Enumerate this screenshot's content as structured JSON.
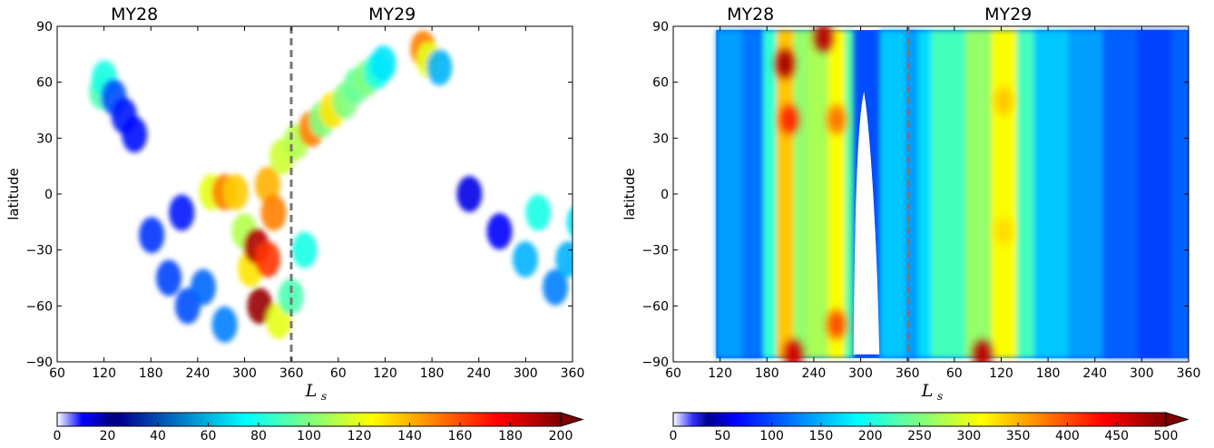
{
  "chart_data": [
    {
      "type": "heatmap",
      "title": "",
      "xlabel": "L",
      "xlabel_subscript": "s",
      "ylabel": "latitude",
      "x_tick_labels": [
        "60",
        "120",
        "180",
        "240",
        "300",
        "360",
        "60",
        "120",
        "180",
        "240",
        "300",
        "360"
      ],
      "y_tick_labels": [
        "90",
        "60",
        "30",
        "0",
        "−30",
        "−60",
        "−90"
      ],
      "ylim": [
        -90,
        90
      ],
      "year_labels": [
        "MY28",
        "MY29"
      ],
      "year_boundary": "dashed-vertical-line",
      "colormap": "jet",
      "colorbar": {
        "range": [
          0,
          200
        ],
        "tick_labels": [
          "0",
          "20",
          "40",
          "60",
          "80",
          "100",
          "120",
          "140",
          "160",
          "180",
          "200"
        ],
        "extend": "max"
      },
      "density": [
        {
          "ls_cont": 112,
          "lat": 55,
          "v": 90
        },
        {
          "ls_cont": 115,
          "lat": 62,
          "v": 80
        },
        {
          "ls_cont": 126,
          "lat": 52,
          "v": 40
        },
        {
          "ls_cont": 138,
          "lat": 42,
          "v": 30
        },
        {
          "ls_cont": 150,
          "lat": 32,
          "v": 28
        },
        {
          "ls_cont": 170,
          "lat": -22,
          "v": 35
        },
        {
          "ls_cont": 190,
          "lat": -45,
          "v": 38
        },
        {
          "ls_cont": 205,
          "lat": -10,
          "v": 30
        },
        {
          "ls_cont": 212,
          "lat": -60,
          "v": 40
        },
        {
          "ls_cont": 230,
          "lat": -50,
          "v": 45
        },
        {
          "ls_cont": 240,
          "lat": 1,
          "v": 120
        },
        {
          "ls_cont": 255,
          "lat": 1,
          "v": 150
        },
        {
          "ls_cont": 268,
          "lat": 1,
          "v": 135
        },
        {
          "ls_cont": 255,
          "lat": -70,
          "v": 50
        },
        {
          "ls_cont": 278,
          "lat": -20,
          "v": 110
        },
        {
          "ls_cont": 285,
          "lat": -40,
          "v": 130
        },
        {
          "ls_cont": 292,
          "lat": -28,
          "v": 190
        },
        {
          "ls_cont": 296,
          "lat": -60,
          "v": 195
        },
        {
          "ls_cont": 305,
          "lat": -35,
          "v": 165
        },
        {
          "ls_cont": 305,
          "lat": 5,
          "v": 140
        },
        {
          "ls_cont": 312,
          "lat": -10,
          "v": 150
        },
        {
          "ls_cont": 318,
          "lat": -68,
          "v": 120
        },
        {
          "ls_cont": 322,
          "lat": 20,
          "v": 115
        },
        {
          "ls_cont": 332,
          "lat": -55,
          "v": 90
        },
        {
          "ls_cont": 338,
          "lat": 28,
          "v": 110
        },
        {
          "ls_cont": 348,
          "lat": -30,
          "v": 80
        },
        {
          "ls_cont": 356,
          "lat": 35,
          "v": 150
        },
        {
          "ls_cont": 368,
          "lat": 40,
          "v": 100
        },
        {
          "ls_cont": 380,
          "lat": 45,
          "v": 130
        },
        {
          "ls_cont": 395,
          "lat": 50,
          "v": 100
        },
        {
          "ls_cont": 408,
          "lat": 58,
          "v": 95
        },
        {
          "ls_cont": 420,
          "lat": 62,
          "v": 100
        },
        {
          "ls_cont": 432,
          "lat": 66,
          "v": 80
        },
        {
          "ls_cont": 440,
          "lat": 70,
          "v": 70
        },
        {
          "ls_cont": 486,
          "lat": 78,
          "v": 150
        },
        {
          "ls_cont": 493,
          "lat": 72,
          "v": 120
        },
        {
          "ls_cont": 505,
          "lat": 68,
          "v": 60
        },
        {
          "ls_cont": 540,
          "lat": 0,
          "v": 20
        },
        {
          "ls_cont": 575,
          "lat": -20,
          "v": 25
        },
        {
          "ls_cont": 605,
          "lat": -35,
          "v": 60
        },
        {
          "ls_cont": 620,
          "lat": -10,
          "v": 80
        },
        {
          "ls_cont": 640,
          "lat": -50,
          "v": 50
        },
        {
          "ls_cont": 655,
          "lat": -35,
          "v": 60
        },
        {
          "ls_cont": 668,
          "lat": -15,
          "v": 70
        },
        {
          "ls_cont": 684,
          "lat": 10,
          "v": 65
        },
        {
          "ls_cont": 686,
          "lat": -60,
          "v": 40
        }
      ]
    },
    {
      "type": "heatmap",
      "title": "",
      "xlabel": "L",
      "xlabel_subscript": "s",
      "ylabel": "latitude",
      "x_tick_labels": [
        "60",
        "120",
        "180",
        "240",
        "300",
        "360",
        "60",
        "120",
        "180",
        "240",
        "300",
        "360"
      ],
      "y_tick_labels": [
        "90",
        "60",
        "30",
        "0",
        "−30",
        "−60",
        "−90"
      ],
      "ylim": [
        -90,
        90
      ],
      "year_labels": [
        "MY28",
        "MY29"
      ],
      "year_boundary": "dashed-vertical-line",
      "colormap": "jet",
      "colorbar": {
        "range": [
          0,
          500
        ],
        "tick_labels": [
          "0",
          "50",
          "100",
          "150",
          "200",
          "250",
          "300",
          "350",
          "400",
          "450",
          "500"
        ],
        "extend": "max"
      },
      "coverage_ls_cont": [
        110,
        690
      ],
      "coverage_gap_ls_cont": [
        270,
        300
      ],
      "bands": [
        {
          "ls_cont": [
            110,
            140
          ],
          "v": 140
        },
        {
          "ls_cont": [
            140,
            165
          ],
          "v": 120
        },
        {
          "ls_cont": [
            165,
            180
          ],
          "v": 210
        },
        {
          "ls_cont": [
            180,
            200
          ],
          "v": 340
        },
        {
          "ls_cont": [
            200,
            215
          ],
          "v": 260
        },
        {
          "ls_cont": [
            215,
            240
          ],
          "v": 270
        },
        {
          "ls_cont": [
            240,
            260
          ],
          "v": 310
        },
        {
          "ls_cont": [
            260,
            270
          ],
          "v": 230
        },
        {
          "ls_cont": [
            300,
            330
          ],
          "v": 160
        },
        {
          "ls_cont": [
            330,
            345
          ],
          "v": 140
        },
        {
          "ls_cont": [
            345,
            360
          ],
          "v": 170
        },
        {
          "ls_cont": [
            360,
            400
          ],
          "v": 220
        },
        {
          "ls_cont": [
            400,
            430
          ],
          "v": 260
        },
        {
          "ls_cont": [
            430,
            460
          ],
          "v": 310
        },
        {
          "ls_cont": [
            460,
            480
          ],
          "v": 220
        },
        {
          "ls_cont": [
            480,
            520
          ],
          "v": 160
        },
        {
          "ls_cont": [
            520,
            560
          ],
          "v": 140
        },
        {
          "ls_cont": [
            560,
            600
          ],
          "v": 110
        },
        {
          "ls_cont": [
            600,
            640
          ],
          "v": 95
        },
        {
          "ls_cont": [
            640,
            690
          ],
          "v": 110
        }
      ],
      "hotspots": [
        {
          "ls_cont": 190,
          "lat": 70,
          "v": 480
        },
        {
          "ls_cont": 195,
          "lat": 40,
          "v": 420
        },
        {
          "ls_cont": 235,
          "lat": 84,
          "v": 470
        },
        {
          "ls_cont": 250,
          "lat": 40,
          "v": 380
        },
        {
          "ls_cont": 250,
          "lat": -70,
          "v": 400
        },
        {
          "ls_cont": 445,
          "lat": 50,
          "v": 340
        },
        {
          "ls_cont": 445,
          "lat": -20,
          "v": 330
        },
        {
          "ls_cont": 420,
          "lat": -86,
          "v": 470
        },
        {
          "ls_cont": 200,
          "lat": -86,
          "v": 460
        }
      ]
    }
  ]
}
